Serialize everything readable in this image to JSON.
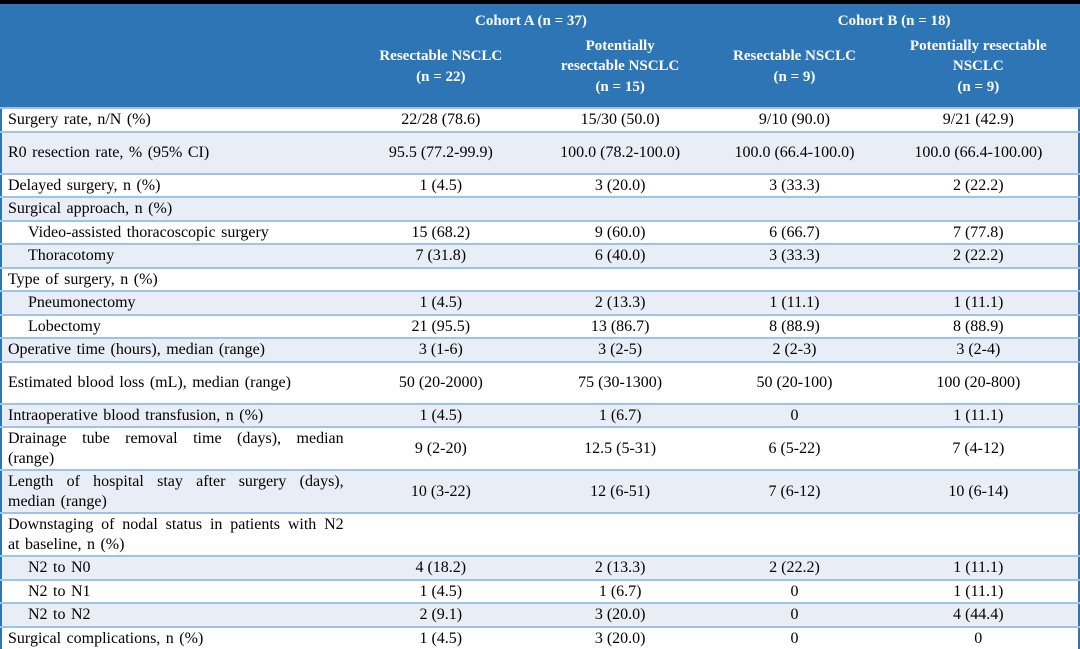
{
  "colors": {
    "header_blue": "#2E75B6",
    "frame_blue": "#2E75B6",
    "row_border": "#9DC3E6",
    "stripe": "#E9EDF6",
    "header_text": "#FFFFFF",
    "body_text": "#000000",
    "bar_black": "#000000"
  },
  "table": {
    "cohort_a": "Cohort A (n = 37)",
    "cohort_b": "Cohort B (n = 18)",
    "columns": [
      "Resectable NSCLC\n(n = 22)",
      "Potentially\nresectable NSCLC\n(n = 15)",
      "Resectable NSCLC\n(n = 9)",
      "Potentially resectable\nNSCLC\n(n = 9)"
    ],
    "rows": [
      {
        "label": "Surgery rate, n/N (%)",
        "values": [
          "22/28 (78.6)",
          "15/30 (50.0)",
          "9/10 (90.0)",
          "9/21 (42.9)"
        ]
      },
      {
        "label": "R0 resection rate, % (95% CI)",
        "tall": true,
        "values": [
          "95.5 (77.2-99.9)",
          "100.0 (78.2-100.0)",
          "100.0 (66.4-100.0)",
          "100.0 (66.4-100.00)"
        ]
      },
      {
        "label": "Delayed surgery, n (%)",
        "values": [
          "1 (4.5)",
          "3 (20.0)",
          "3 (33.3)",
          "2 (22.2)"
        ]
      },
      {
        "label": "Surgical approach, n (%)",
        "values": [
          "",
          "",
          "",
          ""
        ]
      },
      {
        "label": "Video-assisted thoracoscopic surgery",
        "indent": true,
        "values": [
          "15 (68.2)",
          "9 (60.0)",
          "6 (66.7)",
          "7 (77.8)"
        ]
      },
      {
        "label": "Thoracotomy",
        "indent": true,
        "values": [
          "7 (31.8)",
          "6 (40.0)",
          "3 (33.3)",
          "2 (22.2)"
        ]
      },
      {
        "label": "Type of surgery, n (%)",
        "values": [
          "",
          "",
          "",
          ""
        ]
      },
      {
        "label": "Pneumonectomy",
        "indent": true,
        "values": [
          "1 (4.5)",
          "2 (13.3)",
          "1 (11.1)",
          "1 (11.1)"
        ]
      },
      {
        "label": "Lobectomy",
        "indent": true,
        "values": [
          "21 (95.5)",
          "13 (86.7)",
          "8 (88.9)",
          "8 (88.9)"
        ]
      },
      {
        "label": "Operative time (hours), median (range)",
        "values": [
          "3 (1-6)",
          "3 (2-5)",
          "2 (2-3)",
          "3 (2-4)"
        ]
      },
      {
        "label": "Estimated blood loss (mL), median (range)",
        "tall": true,
        "values": [
          "50 (20-2000)",
          "75 (30-1300)",
          "50 (20-100)",
          "100 (20-800)"
        ]
      },
      {
        "label": "Intraoperative blood transfusion, n (%)",
        "values": [
          "1 (4.5)",
          "1 (6.7)",
          "0",
          "1 (11.1)"
        ]
      },
      {
        "label": "Drainage tube removal time (days), median (range)",
        "tall": true,
        "values": [
          "9 (2-20)",
          "12.5 (5-31)",
          "6 (5-22)",
          "7 (4-12)"
        ]
      },
      {
        "label": "Length of hospital stay after surgery (days), median (range)",
        "tall": true,
        "values": [
          "10 (3-22)",
          "12 (6-51)",
          "7 (6-12)",
          "10 (6-14)"
        ]
      },
      {
        "label": "Downstaging of nodal status in patients with N2 at baseline, n (%)",
        "tall": true,
        "values": [
          "",
          "",
          "",
          ""
        ]
      },
      {
        "label": "N2 to N0",
        "indent": true,
        "values": [
          "4 (18.2)",
          "2 (13.3)",
          "2 (22.2)",
          "1 (11.1)"
        ]
      },
      {
        "label": "N2 to N1",
        "indent": true,
        "values": [
          "1 (4.5)",
          "1 (6.7)",
          "0",
          "1 (11.1)"
        ]
      },
      {
        "label": "N2 to N2",
        "indent": true,
        "values": [
          "2 (9.1)",
          "3 (20.0)",
          "0",
          "4 (44.4)"
        ]
      },
      {
        "label": "Surgical complications, n (%)",
        "values": [
          "1 (4.5)",
          "3 (20.0)",
          "0",
          "0"
        ]
      }
    ]
  }
}
